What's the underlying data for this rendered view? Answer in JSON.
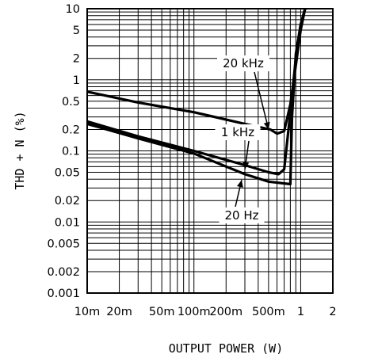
{
  "chart_data": {
    "type": "line",
    "x_scale": "log",
    "y_scale": "log",
    "xlabel": "OUTPUT POWER (W)",
    "ylabel": "THD + N (%)",
    "xlim": [
      0.01,
      2
    ],
    "ylim": [
      0.001,
      10
    ],
    "grid": true,
    "x_ticks": [
      {
        "value": 0.01,
        "label": "10m"
      },
      {
        "value": 0.02,
        "label": "20m"
      },
      {
        "value": 0.05,
        "label": "50m"
      },
      {
        "value": 0.1,
        "label": "100m"
      },
      {
        "value": 0.2,
        "label": "200m"
      },
      {
        "value": 0.5,
        "label": "500m"
      },
      {
        "value": 1,
        "label": "1"
      },
      {
        "value": 2,
        "label": "2"
      }
    ],
    "y_ticks": [
      {
        "value": 10,
        "label": "10"
      },
      {
        "value": 5,
        "label": "5"
      },
      {
        "value": 2,
        "label": "2"
      },
      {
        "value": 1,
        "label": "1"
      },
      {
        "value": 0.5,
        "label": "0.5"
      },
      {
        "value": 0.2,
        "label": "0.2"
      },
      {
        "value": 0.1,
        "label": "0.1"
      },
      {
        "value": 0.05,
        "label": "0.05"
      },
      {
        "value": 0.02,
        "label": "0.02"
      },
      {
        "value": 0.01,
        "label": "0.01"
      },
      {
        "value": 0.005,
        "label": "0.005"
      },
      {
        "value": 0.002,
        "label": "0.002"
      },
      {
        "value": 0.001,
        "label": "0.001"
      }
    ],
    "series": [
      {
        "name": "20 kHz",
        "points": [
          [
            0.01,
            0.68
          ],
          [
            0.03,
            0.48
          ],
          [
            0.1,
            0.35
          ],
          [
            0.3,
            0.24
          ],
          [
            0.52,
            0.2
          ],
          [
            0.6,
            0.175
          ],
          [
            0.7,
            0.19
          ],
          [
            0.8,
            0.45
          ],
          [
            0.9,
            1.6
          ],
          [
            1.0,
            5
          ],
          [
            1.1,
            10
          ]
        ]
      },
      {
        "name": "1 kHz",
        "points": [
          [
            0.01,
            0.26
          ],
          [
            0.03,
            0.16
          ],
          [
            0.1,
            0.1
          ],
          [
            0.3,
            0.063
          ],
          [
            0.5,
            0.05
          ],
          [
            0.62,
            0.047
          ],
          [
            0.7,
            0.055
          ],
          [
            0.8,
            0.35
          ],
          [
            0.9,
            2.0
          ],
          [
            1.0,
            6
          ],
          [
            1.1,
            10
          ]
        ]
      },
      {
        "name": "20 Hz",
        "points": [
          [
            0.01,
            0.24
          ],
          [
            0.03,
            0.15
          ],
          [
            0.1,
            0.092
          ],
          [
            0.3,
            0.047
          ],
          [
            0.5,
            0.037
          ],
          [
            0.8,
            0.034
          ],
          [
            0.83,
            0.3
          ],
          [
            0.9,
            2.3
          ],
          [
            1.0,
            6
          ],
          [
            1.1,
            10
          ]
        ]
      }
    ],
    "annotations": [
      {
        "text": "20 kHz",
        "arrow_to": [
          0.5,
          0.2
        ]
      },
      {
        "text": "1 kHz",
        "arrow_to": [
          0.3,
          0.055
        ]
      },
      {
        "text": "20 Hz",
        "arrow_to": [
          0.28,
          0.039
        ]
      }
    ]
  }
}
